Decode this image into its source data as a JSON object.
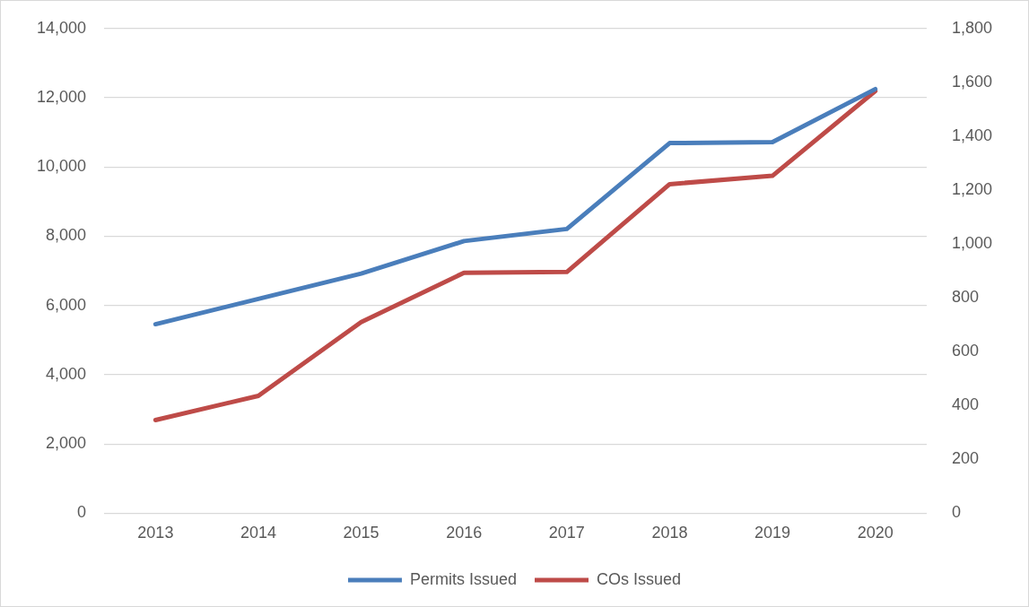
{
  "chart_data": {
    "type": "line",
    "categories": [
      "2013",
      "2014",
      "2015",
      "2016",
      "2017",
      "2018",
      "2019",
      "2020"
    ],
    "series": [
      {
        "name": "Permits Issued",
        "color": "#4a7ebb",
        "values": [
          5460,
          6190,
          6920,
          7860,
          8210,
          10690,
          10720,
          12250
        ]
      },
      {
        "name": "COs Issued",
        "color": "#be4b48",
        "axis": "y2",
        "values": [
          346,
          436,
          710,
          893,
          896,
          1222,
          1253,
          1568
        ]
      }
    ],
    "ylim": [
      0,
      14000
    ],
    "yticks": [
      0,
      {
        "value": 2000,
        "label": "2,000"
      },
      {
        "value": 4000,
        "label": "4,000"
      },
      {
        "value": 6000,
        "label": "6,000"
      },
      {
        "value": 8000,
        "label": "8,000"
      },
      {
        "value": 10000,
        "label": "10,000"
      },
      {
        "value": 12000,
        "label": "12,000"
      },
      {
        "value": 14000,
        "label": "14,000"
      }
    ],
    "y2lim": [
      0,
      1800
    ],
    "y2ticks": [
      0,
      200,
      400,
      600,
      800,
      {
        "value": 1000,
        "label": "1,000"
      },
      {
        "value": 1200,
        "label": "1,200"
      },
      {
        "value": 1400,
        "label": "1,400"
      },
      {
        "value": 1600,
        "label": "1,600"
      },
      {
        "value": 1800,
        "label": "1,800"
      }
    ],
    "grid": "y",
    "legend": "bottom",
    "marker": "none",
    "line_style": "solid"
  }
}
